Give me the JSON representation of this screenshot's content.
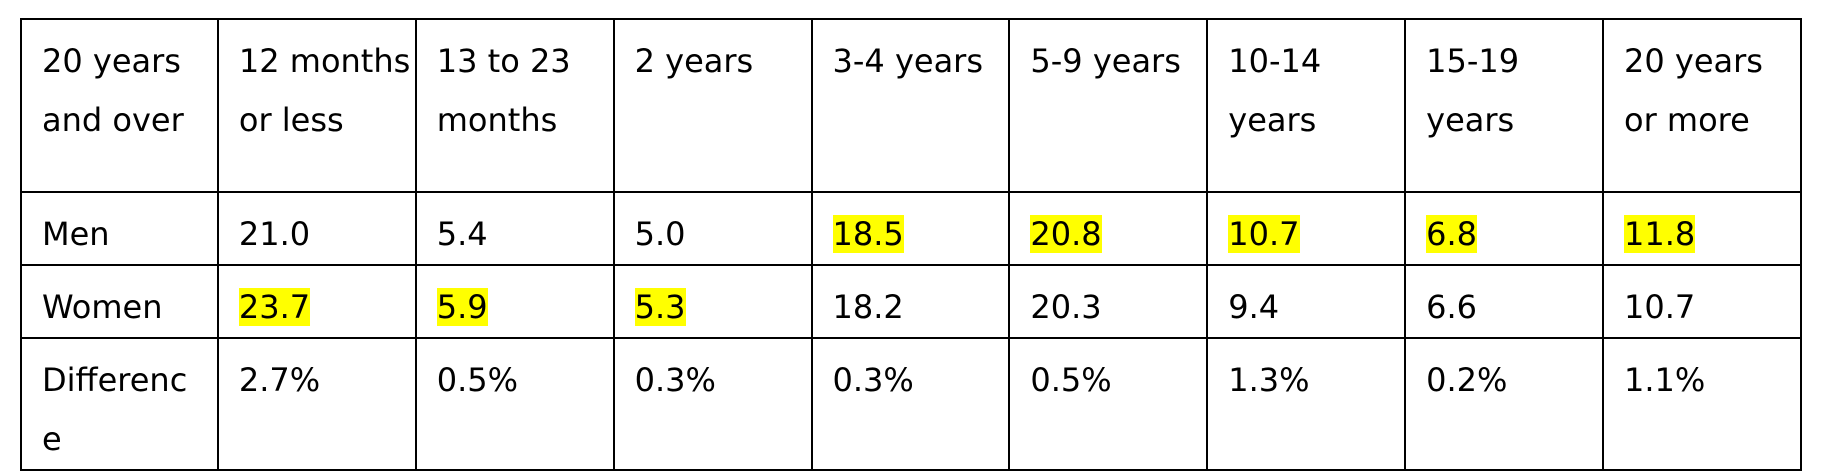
{
  "table": {
    "header": [
      "20 years and over",
      "12 months or less",
      "13 to 23 months",
      "2 years",
      "3-4 years",
      "5-9 years",
      "10-14 years",
      "15-19 years",
      "20 years or more"
    ],
    "rows": [
      {
        "label": "Men",
        "values": [
          "21.0",
          "5.4",
          "5.0",
          "18.5",
          "20.8",
          "10.7",
          "6.8",
          "11.8"
        ],
        "highlighted": [
          false,
          false,
          false,
          true,
          true,
          true,
          true,
          true
        ]
      },
      {
        "label": "Women",
        "values": [
          "23.7",
          "5.9",
          "5.3",
          "18.2",
          "20.3",
          "9.4",
          "6.6",
          "10.7"
        ],
        "highlighted": [
          true,
          true,
          true,
          false,
          false,
          false,
          false,
          false
        ]
      },
      {
        "label": "Differenc e",
        "values": [
          "2.7%",
          "0.5%",
          "0.3%",
          "0.3%",
          "0.5%",
          "1.3%",
          "0.2%",
          "1.1%"
        ],
        "highlighted": [
          false,
          false,
          false,
          false,
          false,
          false,
          false,
          false
        ]
      }
    ]
  },
  "colors": {
    "highlight": "#ffff00",
    "border": "#000000",
    "text": "#000000"
  }
}
